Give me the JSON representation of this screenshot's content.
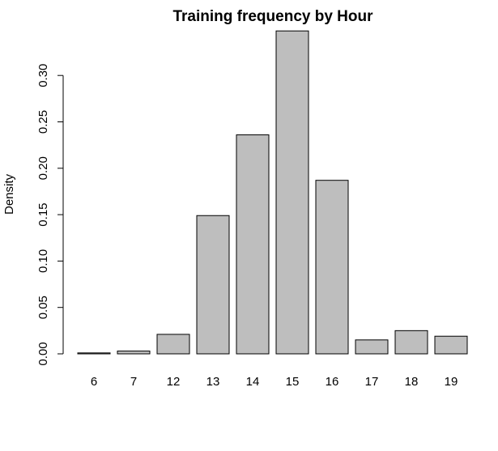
{
  "chart_data": {
    "type": "bar",
    "title": "Training frequency by Hour",
    "xlabel": "",
    "ylabel": "Density",
    "categories": [
      "6",
      "7",
      "12",
      "13",
      "14",
      "15",
      "16",
      "17",
      "18",
      "19"
    ],
    "values": [
      0.001,
      0.003,
      0.021,
      0.149,
      0.236,
      0.348,
      0.187,
      0.015,
      0.025,
      0.019
    ],
    "yticks": [
      "0.00",
      "0.05",
      "0.10",
      "0.15",
      "0.20",
      "0.25",
      "0.30"
    ],
    "ylim": [
      0,
      0.35
    ],
    "grid": false,
    "legend": "none",
    "bar_color": "#bebebe",
    "bar_border_color": "#000000"
  }
}
